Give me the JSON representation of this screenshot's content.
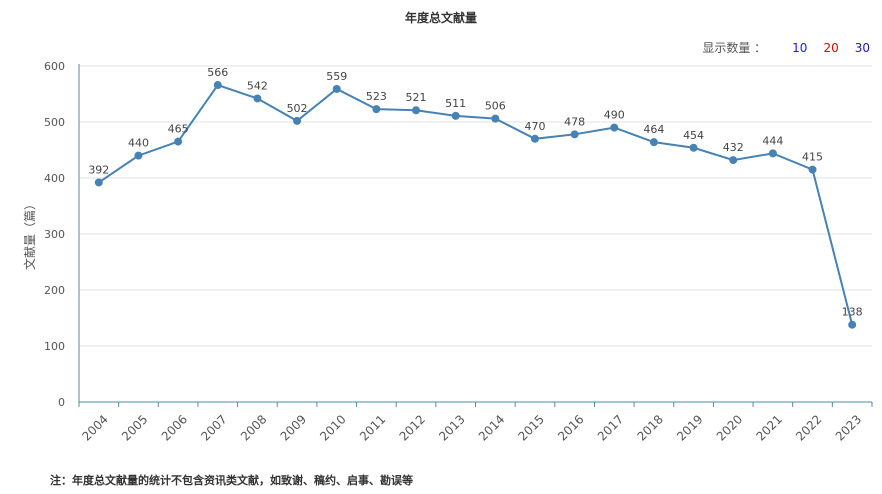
{
  "chart_data": {
    "type": "line",
    "title": "年度总文献量",
    "ylabel": "文献量（篇）",
    "xlabel": "",
    "ylim": [
      0,
      600
    ],
    "yticks": [
      0,
      100,
      200,
      300,
      400,
      500,
      600
    ],
    "grid": true,
    "x": [
      "2004",
      "2005",
      "2006",
      "2007",
      "2008",
      "2009",
      "2010",
      "2011",
      "2012",
      "2013",
      "2014",
      "2015",
      "2016",
      "2017",
      "2018",
      "2019",
      "2020",
      "2021",
      "2022",
      "2023"
    ],
    "values": [
      392,
      440,
      465,
      566,
      542,
      502,
      559,
      523,
      521,
      511,
      506,
      470,
      478,
      490,
      464,
      454,
      432,
      444,
      415,
      138
    ],
    "color": "#4682b4"
  },
  "count_selector": {
    "label": "显示数量 ：",
    "options": [
      "10",
      "20",
      "30"
    ]
  },
  "footnote": "注：年度总文献量的统计不包含资讯类文献，如致谢、稿约、启事、勘误等"
}
